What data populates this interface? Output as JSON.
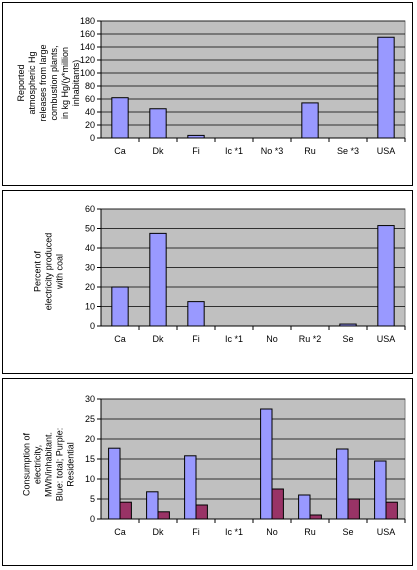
{
  "chart_data": [
    {
      "type": "bar",
      "ylabel": "Reported atmospheric Hg releases from large combustion plants, in kg Hg/(y*million inhabitants)",
      "categories": [
        "Ca",
        "Dk",
        "Fi",
        "Ic *1",
        "No *3",
        "Ru",
        "Se *3",
        "USA"
      ],
      "series": [
        {
          "values": [
            62,
            45,
            4,
            0,
            0,
            54,
            0,
            155
          ],
          "color": "#9999ff"
        }
      ],
      "ylim": [
        0,
        180
      ],
      "yticks": [
        0,
        20,
        40,
        60,
        80,
        100,
        120,
        140,
        160,
        180
      ],
      "grid": true,
      "plot_bg": "#c0c0c0"
    },
    {
      "type": "bar",
      "ylabel": "Percent of electricity produced with coal",
      "categories": [
        "Ca",
        "Dk",
        "Fi",
        "Ic *1",
        "No",
        "Ru *2",
        "Se",
        "USA"
      ],
      "series": [
        {
          "values": [
            20,
            47.5,
            12.5,
            0,
            0,
            0,
            1,
            51.5
          ],
          "color": "#9999ff"
        }
      ],
      "ylim": [
        0,
        60
      ],
      "yticks": [
        0,
        10,
        20,
        30,
        40,
        50,
        60
      ],
      "grid": true,
      "plot_bg": "#c0c0c0"
    },
    {
      "type": "bar",
      "ylabel": "Consumption of electricity, MWh/inhabitant. Blue: total; Purple: Residential",
      "categories": [
        "Ca",
        "Dk",
        "Fi",
        "Ic *1",
        "No",
        "Ru",
        "Se",
        "USA"
      ],
      "series": [
        {
          "values": [
            17.7,
            6.8,
            15.8,
            0,
            27.5,
            6,
            17.5,
            14.5
          ],
          "color": "#9999ff"
        },
        {
          "values": [
            4.2,
            1.8,
            3.5,
            0,
            7.5,
            1,
            5,
            4.2
          ],
          "color": "#993366"
        }
      ],
      "ylim": [
        0,
        30
      ],
      "yticks": [
        0,
        5,
        10,
        15,
        20,
        25,
        30
      ],
      "grid": true,
      "plot_bg": "#c0c0c0"
    }
  ]
}
